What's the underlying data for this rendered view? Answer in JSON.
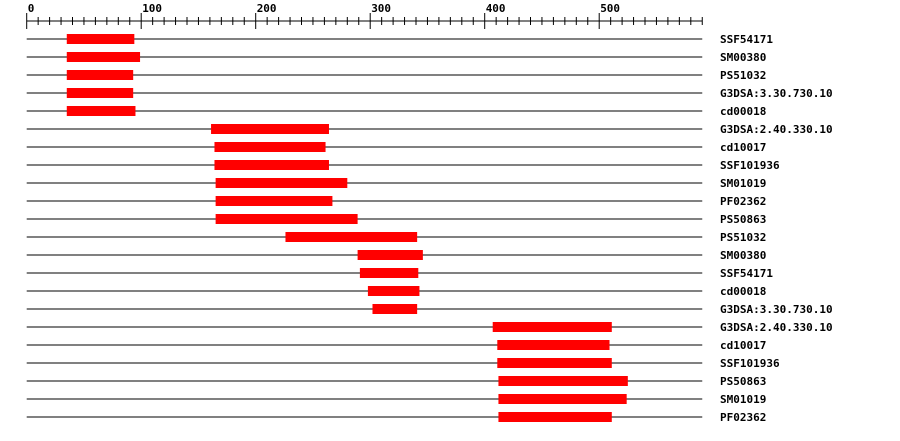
{
  "chart_data": {
    "type": "domain-architecture",
    "axis": {
      "min": 0,
      "max": 590,
      "major_ticks": [
        0,
        100,
        200,
        300,
        400,
        500
      ],
      "minor_step": 10
    },
    "domain_color": "#ff0000",
    "rows": [
      {
        "label": "SSF54171",
        "start": 35,
        "end": 94
      },
      {
        "label": "SM00380",
        "start": 35,
        "end": 99
      },
      {
        "label": "PS51032",
        "start": 35,
        "end": 93
      },
      {
        "label": "G3DSA:3.30.730.10",
        "start": 35,
        "end": 93
      },
      {
        "label": "cd00018",
        "start": 35,
        "end": 95
      },
      {
        "label": "G3DSA:2.40.330.10",
        "start": 161,
        "end": 264
      },
      {
        "label": "cd10017",
        "start": 164,
        "end": 261
      },
      {
        "label": "SSF101936",
        "start": 164,
        "end": 264
      },
      {
        "label": "SM01019",
        "start": 165,
        "end": 280
      },
      {
        "label": "PF02362",
        "start": 165,
        "end": 267
      },
      {
        "label": "PS50863",
        "start": 165,
        "end": 289
      },
      {
        "label": "PS51032",
        "start": 226,
        "end": 341
      },
      {
        "label": "SM00380",
        "start": 289,
        "end": 346
      },
      {
        "label": "SSF54171",
        "start": 291,
        "end": 342
      },
      {
        "label": "cd00018",
        "start": 298,
        "end": 343
      },
      {
        "label": "G3DSA:3.30.730.10",
        "start": 302,
        "end": 341
      },
      {
        "label": "G3DSA:2.40.330.10",
        "start": 407,
        "end": 511
      },
      {
        "label": "cd10017",
        "start": 411,
        "end": 509
      },
      {
        "label": "SSF101936",
        "start": 411,
        "end": 511
      },
      {
        "label": "PS50863",
        "start": 412,
        "end": 525
      },
      {
        "label": "SM01019",
        "start": 412,
        "end": 524
      },
      {
        "label": "PF02362",
        "start": 412,
        "end": 511
      }
    ]
  }
}
